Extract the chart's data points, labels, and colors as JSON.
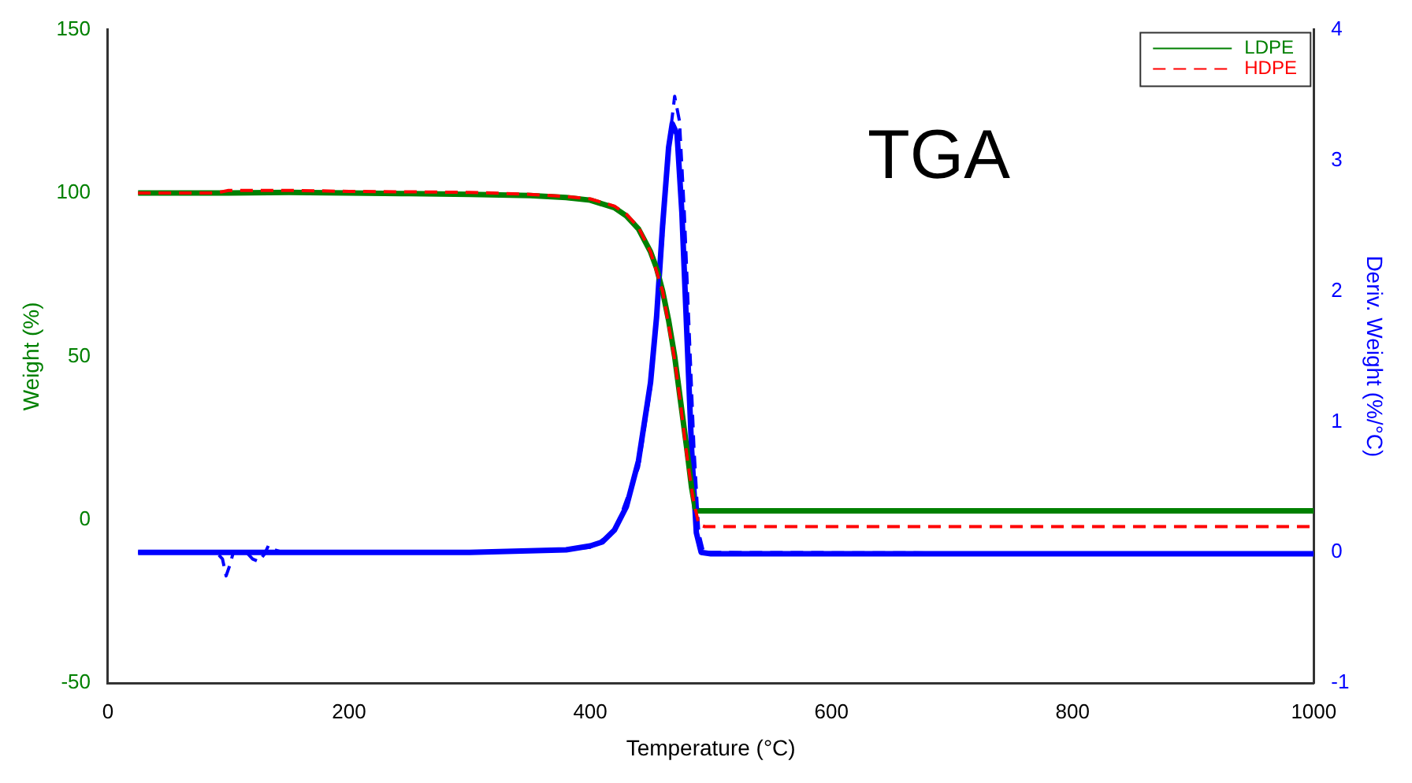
{
  "chart_data": {
    "type": "line",
    "xlabel": "Temperature (°C)",
    "ylabel": "Weight (%)",
    "y2label": "Deriv. Weight (%/°C)",
    "annotations": [
      "TGA"
    ],
    "xlim": [
      0,
      1000
    ],
    "xticks": [
      0,
      200,
      400,
      600,
      800,
      1000
    ],
    "ylim": [
      -50,
      150
    ],
    "yticks": [
      -50,
      0,
      50,
      100,
      150
    ],
    "y2lim": [
      -1,
      4
    ],
    "y2ticks": [
      -1,
      0,
      1,
      2,
      3,
      4
    ],
    "legend": "top right",
    "marker": "none",
    "series": [
      {
        "name": "LDPE",
        "color": "#008000",
        "line_style": "solid",
        "x": [
          25,
          100,
          150,
          200,
          250,
          300,
          350,
          380,
          400,
          420,
          430,
          440,
          450,
          455,
          460,
          465,
          470,
          475,
          480,
          484,
          487,
          490,
          600,
          800,
          1000
        ],
        "values": [
          100,
          100,
          100.2,
          100,
          99.8,
          99.6,
          99.2,
          98.6,
          97.8,
          95.5,
          93,
          89,
          82,
          77,
          70,
          61,
          50,
          36,
          22,
          10,
          3.5,
          2.7,
          2.7,
          2.7,
          2.7
        ]
      },
      {
        "name": "HDPE",
        "color": "#ff0000",
        "line_style": "dashed",
        "x": [
          25,
          90,
          100,
          150,
          200,
          300,
          350,
          380,
          400,
          420,
          430,
          440,
          450,
          460,
          470,
          475,
          480,
          485,
          490,
          495,
          600,
          1000
        ],
        "values": [
          100,
          100,
          100.8,
          100.8,
          100.5,
          100.2,
          99.6,
          98.9,
          98.2,
          96,
          93.5,
          89.5,
          82,
          70,
          49,
          35,
          20,
          7,
          -1.5,
          -2.1,
          -2.1,
          -2.1
        ]
      },
      {
        "color": "#0000ff",
        "line_style": "solid",
        "axis": "y2",
        "x": [
          25,
          300,
          380,
          400,
          410,
          420,
          430,
          440,
          450,
          455,
          460,
          465,
          468,
          472,
          476,
          480,
          484,
          488,
          492,
          500,
          1000
        ],
        "values": [
          0,
          0,
          0.02,
          0.05,
          0.08,
          0.17,
          0.35,
          0.7,
          1.3,
          1.8,
          2.5,
          3.1,
          3.28,
          3.2,
          2.6,
          1.7,
          0.8,
          0.15,
          0,
          -0.01,
          -0.01
        ]
      },
      {
        "color": "#0000ff",
        "line_style": "dashed",
        "axis": "y2",
        "x": [
          25,
          90,
          95,
          98,
          101,
          104,
          115,
          120,
          125,
          130,
          133,
          138,
          145,
          300,
          380,
          400,
          420,
          440,
          450,
          460,
          465,
          470,
          474,
          478,
          482,
          486,
          490,
          494,
          1000
        ],
        "values": [
          0,
          0,
          -0.05,
          -0.18,
          -0.1,
          0,
          0,
          -0.05,
          -0.07,
          -0.01,
          0.05,
          0.02,
          0,
          0,
          0.02,
          0.04,
          0.15,
          0.65,
          1.25,
          2.4,
          3.1,
          3.49,
          3.3,
          2.6,
          1.7,
          0.8,
          0.15,
          0,
          -0.01
        ]
      }
    ]
  }
}
